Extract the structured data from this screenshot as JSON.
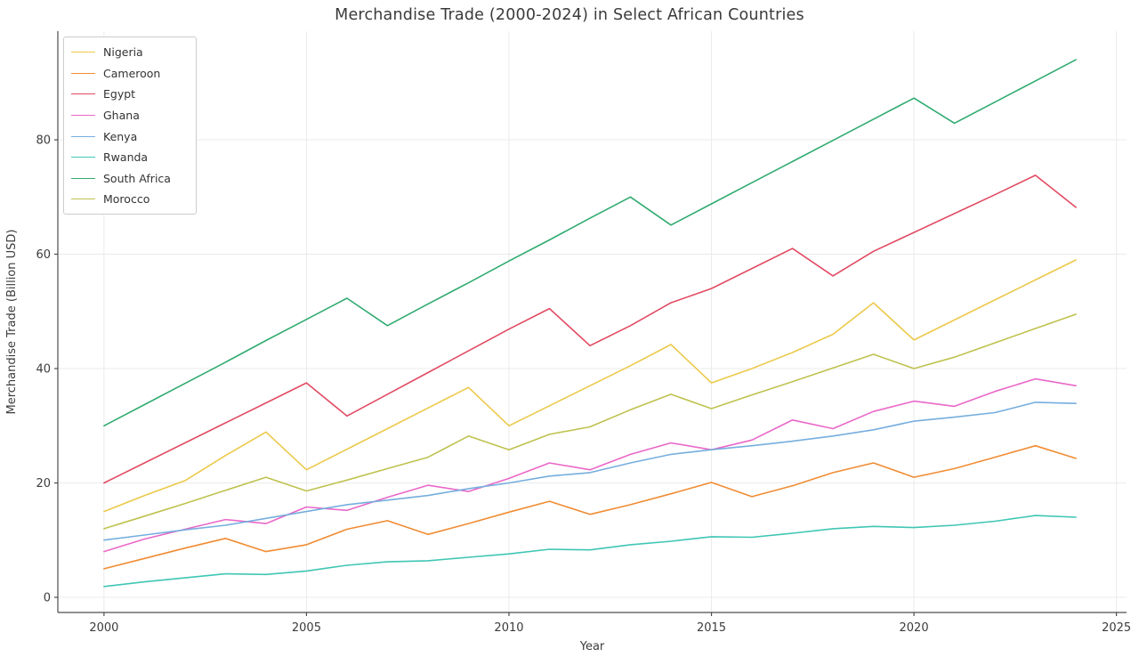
{
  "figure": {
    "title": "Merchandise Trade (2000-2024) in Select African Countries"
  },
  "chart_data": {
    "type": "line",
    "title": "Merchandise Trade (2000-2024) in Select African Countries",
    "xlabel": "Year",
    "ylabel": "Merchandise Trade (Billion USD)",
    "x": [
      2000,
      2001,
      2002,
      2003,
      2004,
      2005,
      2006,
      2007,
      2008,
      2009,
      2010,
      2011,
      2012,
      2013,
      2014,
      2015,
      2016,
      2017,
      2018,
      2019,
      2020,
      2021,
      2022,
      2023,
      2024
    ],
    "xticks": [
      2000,
      2005,
      2010,
      2015,
      2020,
      2025
    ],
    "yticks": [
      0,
      20,
      40,
      60,
      80
    ],
    "xlim": [
      1998.86,
      2025.25
    ],
    "ylim": [
      -2.65,
      99.0
    ],
    "grid": true,
    "legend_position": "upper-left",
    "series": [
      {
        "name": "Nigeria",
        "color": "#ecc94b",
        "values": [
          15.0,
          17.8,
          20.4,
          24.8,
          28.9,
          22.3,
          25.9,
          29.5,
          33.1,
          36.7,
          30.0,
          33.5,
          37.0,
          40.5,
          44.2,
          37.5,
          40.0,
          42.8,
          46.0,
          51.5,
          45.0,
          48.5,
          52.0,
          55.5,
          59.0
        ]
      },
      {
        "name": "Cameroon",
        "color": "#f08c33",
        "values": [
          5.0,
          6.8,
          8.6,
          10.3,
          8.0,
          9.2,
          11.9,
          13.4,
          11.0,
          12.9,
          14.9,
          16.8,
          14.5,
          16.2,
          18.1,
          20.1,
          17.6,
          19.5,
          21.8,
          23.5,
          21.0,
          22.5,
          24.5,
          26.5,
          24.3
        ]
      },
      {
        "name": "Egypt",
        "color": "#e14b63",
        "values": [
          20.0,
          23.5,
          27.0,
          30.5,
          34.0,
          37.5,
          31.7,
          35.5,
          39.3,
          43.1,
          46.9,
          50.5,
          44.0,
          47.5,
          51.5,
          54.0,
          57.5,
          61.0,
          56.2,
          60.5,
          63.8,
          67.1,
          70.4,
          73.8,
          68.2
        ]
      },
      {
        "name": "Ghana",
        "color": "#ea68c8",
        "values": [
          8.0,
          10.2,
          11.9,
          13.6,
          12.9,
          15.8,
          15.2,
          17.5,
          19.6,
          18.5,
          20.8,
          23.5,
          22.3,
          25.0,
          27.0,
          25.8,
          27.5,
          31.0,
          29.5,
          32.5,
          34.3,
          33.4,
          36.0,
          38.2,
          37.0
        ]
      },
      {
        "name": "Kenya",
        "color": "#76aede",
        "values": [
          10.0,
          10.9,
          11.8,
          12.6,
          13.8,
          15.0,
          16.2,
          17.0,
          17.8,
          19.0,
          20.0,
          21.2,
          21.8,
          23.5,
          25.0,
          25.8,
          26.5,
          27.3,
          28.2,
          29.3,
          30.8,
          31.5,
          32.3,
          34.1,
          33.9
        ]
      },
      {
        "name": "Rwanda",
        "color": "#3fc6b4",
        "values": [
          1.9,
          2.7,
          3.4,
          4.1,
          4.0,
          4.6,
          5.6,
          6.2,
          6.4,
          7.0,
          7.6,
          8.4,
          8.3,
          9.2,
          9.8,
          10.6,
          10.5,
          11.2,
          12.0,
          12.4,
          12.2,
          12.6,
          13.3,
          14.3,
          14.0
        ]
      },
      {
        "name": "South Africa",
        "color": "#30ab70",
        "values": [
          30.0,
          33.7,
          37.4,
          41.1,
          44.9,
          48.6,
          52.3,
          47.5,
          51.3,
          55.0,
          58.8,
          62.5,
          66.3,
          70.0,
          65.1,
          68.8,
          72.5,
          76.2,
          79.9,
          83.6,
          87.3,
          82.9,
          86.6,
          90.3,
          94.0
        ]
      },
      {
        "name": "Morocco",
        "color": "#bec24e",
        "values": [
          12.0,
          14.2,
          16.4,
          18.7,
          21.0,
          18.6,
          20.5,
          22.5,
          24.5,
          28.2,
          25.8,
          28.5,
          29.8,
          32.8,
          35.5,
          33.0,
          35.4,
          37.7,
          40.1,
          42.5,
          40.0,
          42.0,
          44.5,
          47.0,
          49.5
        ]
      }
    ]
  }
}
